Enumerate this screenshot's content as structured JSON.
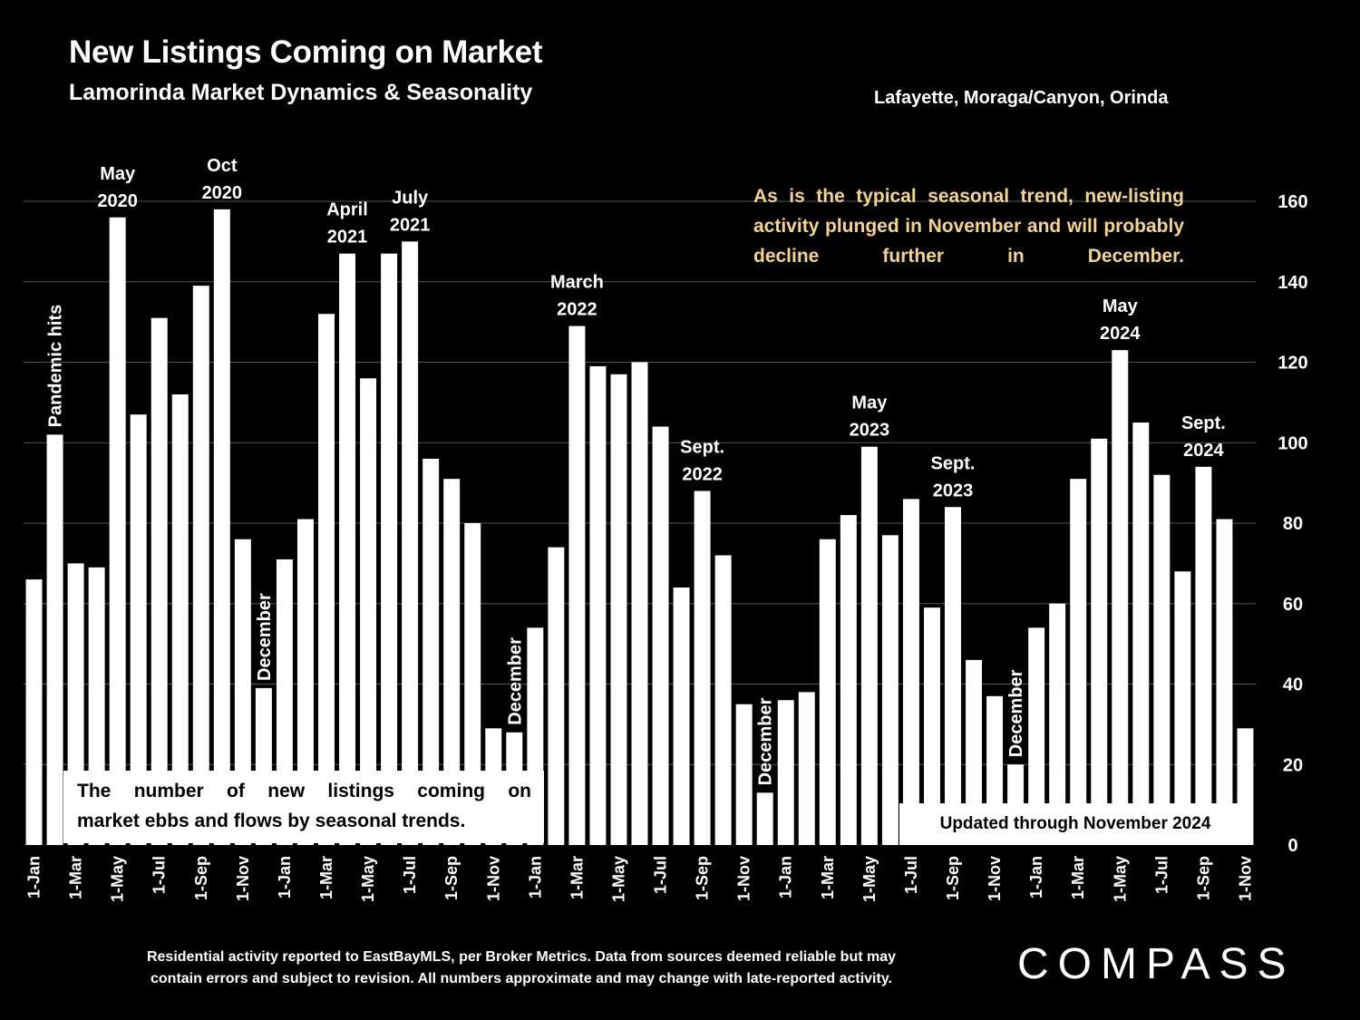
{
  "header": {
    "title": "New Listings Coming on Market",
    "subtitle": "Lamorinda Market Dynamics & Seasonality",
    "region": "Lafayette, Moraga/Canyon, Orinda"
  },
  "notes": {
    "top": "As is the typical seasonal trend, new-listing activity plunged in November and will probably decline further in December.",
    "bottom_line1": "The number of new listings coming on",
    "bottom_line2": "market ebbs and flows by seasonal trends.",
    "updated": "Updated through November 2024"
  },
  "footer": {
    "line1": "Residential activity reported to EastBayMLS, per Broker Metrics. Data from sources deemed reliable but may",
    "line2": "contain errors and subject to revision. All numbers approximate and may change with late-reported activity.",
    "logo": "COMPASS"
  },
  "colors": {
    "background": "#000000",
    "bars": "#ffffff",
    "note": "#f3d58a",
    "grid": "#555555"
  },
  "chart_data": {
    "type": "bar",
    "ylim": [
      0,
      160
    ],
    "yticks": [
      0,
      20,
      40,
      60,
      80,
      100,
      120,
      140,
      160
    ],
    "y_axis_side": "right",
    "grid": true,
    "categories": [
      "1-Jan",
      "",
      "1-Mar",
      "",
      "1-May",
      "",
      "1-Jul",
      "",
      "1-Sep",
      "",
      "1-Nov",
      "",
      "1-Jan",
      "",
      "1-Mar",
      "",
      "1-May",
      "",
      "1-Jul",
      "",
      "1-Sep",
      "",
      "1-Nov",
      "",
      "1-Jan",
      "",
      "1-Mar",
      "",
      "1-May",
      "",
      "1-Jul",
      "",
      "1-Sep",
      "",
      "1-Nov",
      "",
      "1-Jan",
      "",
      "1-Mar",
      "",
      "1-May",
      "",
      "1-Jul",
      "",
      "1-Sep",
      "",
      "1-Nov",
      "",
      "1-Jan",
      "",
      "1-Mar",
      "",
      "1-May",
      "",
      "1-Jul",
      "",
      "1-Sep",
      "",
      "1-Nov"
    ],
    "values": [
      66,
      102,
      70,
      69,
      156,
      107,
      131,
      112,
      139,
      158,
      76,
      39,
      71,
      81,
      132,
      147,
      116,
      147,
      150,
      96,
      91,
      80,
      29,
      28,
      54,
      74,
      129,
      119,
      117,
      120,
      104,
      64,
      88,
      72,
      35,
      13,
      36,
      38,
      76,
      82,
      99,
      77,
      86,
      59,
      84,
      46,
      37,
      20,
      54,
      60,
      91,
      101,
      123,
      105,
      92,
      68,
      94,
      81,
      29
    ],
    "annotations": [
      {
        "index": 1,
        "text": "Pandemic hits",
        "rotated": true
      },
      {
        "index": 4,
        "text": "May|2020"
      },
      {
        "index": 9,
        "text": "Oct|2020"
      },
      {
        "index": 11,
        "text": "December",
        "rotated": true
      },
      {
        "index": 15,
        "text": "April|2021"
      },
      {
        "index": 18,
        "text": "July|2021"
      },
      {
        "index": 23,
        "text": "December",
        "rotated": true
      },
      {
        "index": 26,
        "text": "March|2022"
      },
      {
        "index": 32,
        "text": "Sept.|2022"
      },
      {
        "index": 35,
        "text": "December",
        "rotated": true
      },
      {
        "index": 40,
        "text": "May|2023"
      },
      {
        "index": 44,
        "text": "Sept.|2023"
      },
      {
        "index": 47,
        "text": "December",
        "rotated": true
      },
      {
        "index": 52,
        "text": "May|2024"
      },
      {
        "index": 56,
        "text": "Sept.|2024"
      }
    ]
  }
}
